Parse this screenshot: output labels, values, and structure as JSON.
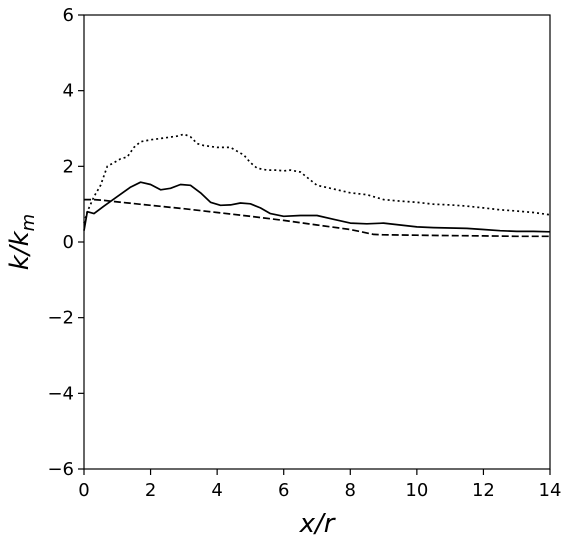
{
  "chart_data": {
    "type": "line",
    "xlabel": "x/r",
    "ylabel": "k/k",
    "ylabel_subscript": "m",
    "xlim": [
      0,
      14
    ],
    "ylim": [
      -6,
      6
    ],
    "xticks": [
      "0",
      "2",
      "4",
      "6",
      "8",
      "10",
      "12",
      "14"
    ],
    "yticks": [
      "6",
      "4",
      "2",
      "0",
      "−2",
      "−4",
      "−6"
    ],
    "grid": false,
    "series": [
      {
        "style": "solid",
        "x": [
          0,
          0.1,
          0.3,
          0.6,
          1.0,
          1.4,
          1.7,
          2.0,
          2.3,
          2.6,
          2.9,
          3.2,
          3.5,
          3.8,
          4.1,
          4.4,
          4.7,
          5.0,
          5.3,
          5.6,
          6.0,
          6.5,
          7.0,
          7.5,
          8.0,
          8.5,
          9.0,
          9.5,
          10.0,
          10.5,
          11.0,
          11.5,
          12.0,
          12.5,
          13.0,
          13.5,
          14.0
        ],
        "values": [
          0.3,
          0.8,
          0.75,
          0.95,
          1.2,
          1.45,
          1.58,
          1.52,
          1.38,
          1.42,
          1.52,
          1.5,
          1.3,
          1.05,
          0.97,
          0.98,
          1.03,
          1.01,
          0.9,
          0.75,
          0.68,
          0.7,
          0.7,
          0.6,
          0.5,
          0.48,
          0.5,
          0.45,
          0.4,
          0.38,
          0.37,
          0.36,
          0.33,
          0.3,
          0.28,
          0.28,
          0.27
        ]
      },
      {
        "style": "dashed",
        "x": [
          0,
          0.3,
          0.6,
          1,
          2,
          3,
          4,
          5,
          6,
          7,
          8,
          8.7,
          9,
          10,
          11,
          12,
          13,
          14
        ],
        "values": [
          1.12,
          1.12,
          1.1,
          1.06,
          0.97,
          0.88,
          0.78,
          0.68,
          0.57,
          0.45,
          0.33,
          0.2,
          0.19,
          0.18,
          0.17,
          0.16,
          0.15,
          0.15
        ]
      },
      {
        "style": "dotted",
        "x": [
          0,
          0.1,
          0.3,
          0.5,
          0.7,
          0.9,
          1.1,
          1.3,
          1.5,
          1.7,
          2.0,
          2.4,
          2.8,
          3.0,
          3.2,
          3.4,
          3.6,
          4.0,
          4.4,
          4.6,
          4.8,
          5.0,
          5.2,
          5.5,
          5.8,
          6.0,
          6.2,
          6.5,
          7.0,
          7.5,
          8.0,
          8.5,
          9.0,
          9.5,
          10.0,
          10.5,
          11.0,
          11.5,
          12.0,
          12.5,
          13.0,
          13.5,
          14.0
        ],
        "values": [
          0.5,
          0.8,
          1.2,
          1.5,
          2.0,
          2.1,
          2.2,
          2.25,
          2.5,
          2.65,
          2.7,
          2.75,
          2.8,
          2.85,
          2.78,
          2.6,
          2.55,
          2.5,
          2.5,
          2.4,
          2.3,
          2.1,
          1.95,
          1.9,
          1.9,
          1.88,
          1.9,
          1.85,
          1.5,
          1.4,
          1.3,
          1.25,
          1.12,
          1.08,
          1.05,
          1.0,
          0.98,
          0.95,
          0.9,
          0.85,
          0.82,
          0.78,
          0.72
        ]
      }
    ]
  }
}
